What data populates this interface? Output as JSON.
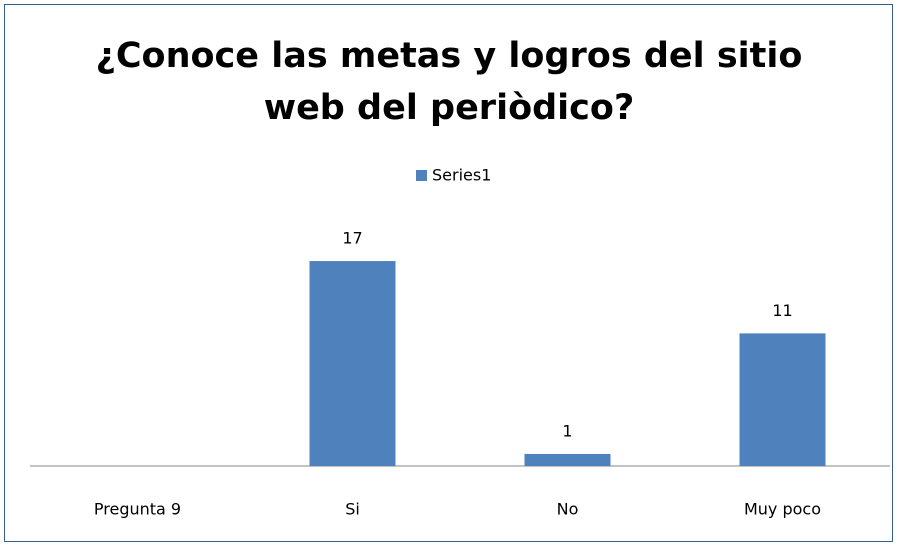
{
  "chart_data": {
    "type": "bar",
    "title": "¿Conoce las metas y logros del sitio web del periòdico?",
    "categories": [
      "Pregunta 9",
      "Si",
      "No",
      "Muy poco"
    ],
    "series": [
      {
        "name": "Series1",
        "color": "#4f81bd",
        "values": [
          null,
          17,
          1,
          11
        ]
      }
    ],
    "ylim": [
      0,
      18
    ],
    "legend": "top"
  }
}
